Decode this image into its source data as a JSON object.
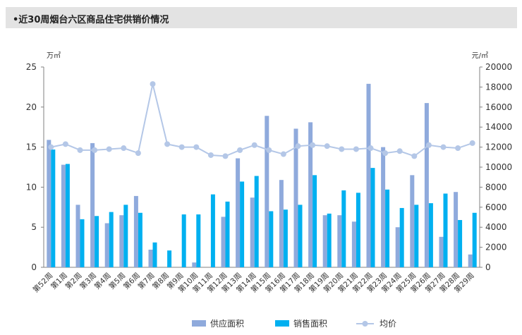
{
  "title": "•近30周烟台六区商品住宅供销价情况",
  "colors": {
    "supply": "#8faadc",
    "sales": "#00b0f0",
    "price": "#b4c7e7",
    "axis": "#808080"
  },
  "chart_data": {
    "type": "bar",
    "title": "•近30周烟台六区商品住宅供销价情况",
    "categories": [
      "第52周",
      "第1周",
      "第2周",
      "第3周",
      "第4周",
      "第5周",
      "第6周",
      "第7周",
      "第8周",
      "第9周",
      "第10周",
      "第11周",
      "第12周",
      "第13周",
      "第14周",
      "第15周",
      "第16周",
      "第17周",
      "第18周",
      "第19周",
      "第20周",
      "第21周",
      "第22周",
      "第23周",
      "第24周",
      "第25周",
      "第26周",
      "第27周",
      "第28周",
      "第29周"
    ],
    "left_axis": {
      "unit": "万㎡",
      "range": [
        0,
        25
      ],
      "ticks": [
        "0",
        "5",
        "10",
        "15",
        "20",
        "25"
      ]
    },
    "right_axis": {
      "unit": "元/㎡",
      "range": [
        0,
        20000
      ],
      "ticks": [
        "0",
        "2000",
        "4000",
        "6000",
        "8000",
        "10000",
        "12000",
        "14000",
        "16000",
        "18000",
        "20000"
      ]
    },
    "series": [
      {
        "name": "供应面积",
        "type": "bar",
        "axis": "left",
        "values": [
          15.9,
          12.8,
          7.8,
          15.5,
          5.5,
          6.5,
          8.9,
          2.2,
          0,
          0,
          0.6,
          0,
          6.3,
          13.6,
          8.7,
          18.9,
          10.9,
          17.3,
          18.1,
          6.5,
          6.5,
          5.7,
          22.9,
          15.0,
          5.0,
          11.5,
          20.5,
          3.8,
          9.4,
          1.6
        ]
      },
      {
        "name": "销售面积",
        "type": "bar",
        "axis": "left",
        "values": [
          14.7,
          12.9,
          6.0,
          6.4,
          6.9,
          7.8,
          6.8,
          3.1,
          2.1,
          6.6,
          6.6,
          9.1,
          8.2,
          10.7,
          11.4,
          7.0,
          7.2,
          7.8,
          11.5,
          6.7,
          9.6,
          9.3,
          12.4,
          9.7,
          7.4,
          7.8,
          8.0,
          9.2,
          5.9,
          6.8
        ]
      },
      {
        "name": "均价",
        "type": "line",
        "axis": "right",
        "values": [
          12000,
          12300,
          11700,
          11700,
          11800,
          11900,
          11400,
          18300,
          12300,
          12000,
          12000,
          11200,
          11100,
          11700,
          12200,
          11700,
          11300,
          12100,
          12200,
          12100,
          11800,
          11800,
          11900,
          11400,
          11600,
          11100,
          12200,
          12000,
          11900,
          12400
        ]
      }
    ],
    "legend": {
      "position": "bottom-center",
      "labels": [
        "供应面积",
        "销售面积",
        "均价"
      ]
    }
  }
}
